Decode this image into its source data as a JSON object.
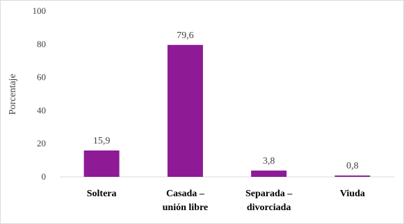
{
  "chart_data": {
    "type": "bar",
    "title": "",
    "ylabel": "Porcentaje",
    "xlabel": "",
    "ylim": [
      0,
      100
    ],
    "yticks": [
      0,
      20,
      40,
      60,
      80,
      100
    ],
    "grid": false,
    "bar_color": "#8E1A96",
    "categories": [
      [
        "Soltera"
      ],
      [
        "Casada –",
        "unión libre"
      ],
      [
        "Separada –",
        "divorciada"
      ],
      [
        "Viuda"
      ]
    ],
    "values": [
      15.9,
      79.6,
      3.8,
      0.8
    ],
    "value_labels": [
      "15,9",
      "79,6",
      "3,8",
      "0,8"
    ]
  }
}
